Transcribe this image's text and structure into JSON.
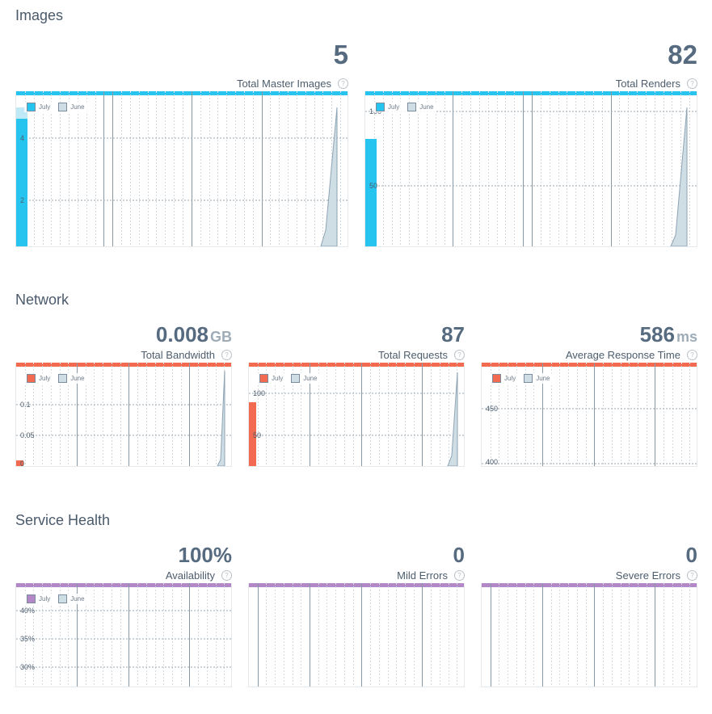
{
  "sections": {
    "images": "Images",
    "network": "Network",
    "service_health": "Service Health"
  },
  "legend": {
    "current": "July",
    "previous": "June"
  },
  "colors": {
    "blue": "#27c4ef",
    "orange": "#f26a4f",
    "purple": "#b388c6",
    "june": "#cfdde5"
  },
  "cards": {
    "master_images": {
      "value": "5",
      "unit": "",
      "label": "Total Master Images",
      "ticks": [
        "4",
        "2"
      ]
    },
    "renders": {
      "value": "82",
      "unit": "",
      "label": "Total Renders",
      "ticks": [
        "100",
        "50"
      ]
    },
    "bandwidth": {
      "value": "0.008",
      "unit": "GB",
      "label": "Total Bandwidth",
      "ticks": [
        "0.1",
        "0.05",
        "0"
      ]
    },
    "requests": {
      "value": "87",
      "unit": "",
      "label": "Total Requests",
      "ticks": [
        "100",
        "50"
      ]
    },
    "response_time": {
      "value": "586",
      "unit": "ms",
      "label": "Average Response Time",
      "ticks": [
        "450",
        "400"
      ]
    },
    "availability": {
      "value": "100%",
      "unit": "",
      "label": "Availability",
      "ticks": [
        "40%",
        "35%",
        "30%"
      ]
    },
    "mild_errors": {
      "value": "0",
      "unit": "",
      "label": "Mild Errors",
      "ticks": []
    },
    "severe_errors": {
      "value": "0",
      "unit": "",
      "label": "Severe Errors",
      "ticks": []
    }
  },
  "help_glyph": "?"
}
